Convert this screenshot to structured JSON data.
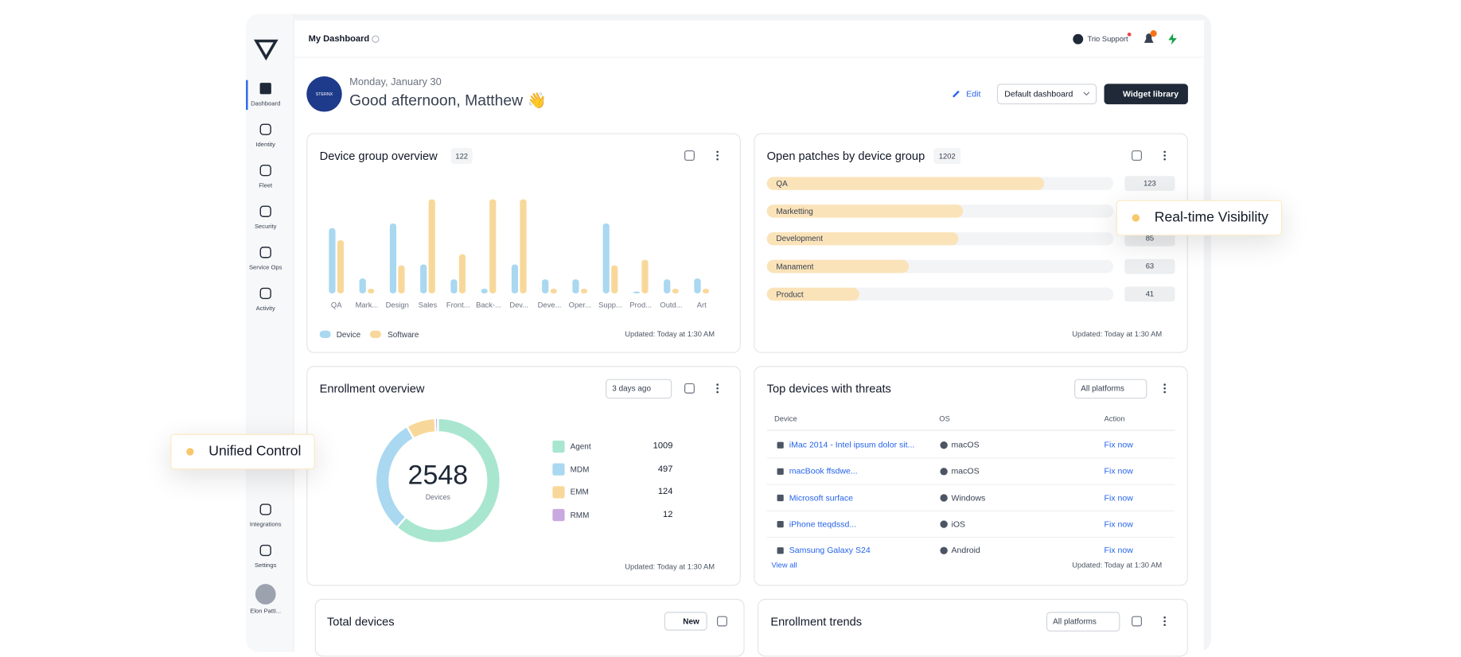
{
  "header": {
    "title": "My Dashboard",
    "support": "Trio Support"
  },
  "sidebar": {
    "items": [
      "Dashboard",
      "Identity",
      "Fleet",
      "Security",
      "Service Ops",
      "Activity",
      "Integrations",
      "Settings"
    ],
    "user": "Elon Patti..."
  },
  "greeting": {
    "logo": "STERNX",
    "date": "Monday, January 30",
    "message": "Good afternoon, Matthew 👋"
  },
  "toolbar": {
    "edit": "Edit",
    "dashboard": "Default dashboard",
    "widget_library": "Widget library"
  },
  "device_group_overview": {
    "title": "Device group overview",
    "count": 122,
    "updated": "Updated: Today at 1:30 AM",
    "chart_data": {
      "type": "bar",
      "categories": [
        "QA",
        "Mark...",
        "Design",
        "Sales",
        "Front...",
        "Back-...",
        "Dev...",
        "Deve...",
        "Oper...",
        "Supp...",
        "Prod...",
        "Outd...",
        "Art"
      ],
      "series": [
        {
          "name": "Device",
          "color": "#a9d8f0",
          "values": [
            70,
            16,
            75,
            31,
            15,
            5,
            31,
            15,
            15,
            75,
            2,
            15,
            16
          ]
        },
        {
          "name": "Software",
          "color": "#f8d89a",
          "values": [
            57,
            5,
            30,
            101,
            42,
            101,
            101,
            5,
            5,
            30,
            36,
            5,
            5
          ]
        }
      ]
    }
  },
  "open_patches": {
    "title": "Open patches by device group",
    "count": 1202,
    "updated": "Updated: Today at 1:30 AM",
    "chart_data": {
      "type": "hbar",
      "categories": [
        "QA",
        "Marketting",
        "Development",
        "Manament",
        "Product"
      ],
      "values": [
        123,
        87,
        85,
        63,
        41
      ],
      "color": "#fbe3b9"
    }
  },
  "enrollment_overview": {
    "title": "Enrollment overview",
    "range": "3 days ago",
    "updated": "Updated: Today at 1:30 AM",
    "total": 2548,
    "total_label": "Devices",
    "chart_data": {
      "type": "pie",
      "categories": [
        "Agent",
        "MDM",
        "EMM",
        "RMM"
      ],
      "values": [
        1009,
        497,
        124,
        12
      ],
      "colors": [
        "#a8e6cf",
        "#a9d8f0",
        "#f8d89a",
        "#c9a8e0"
      ]
    }
  },
  "top_devices": {
    "title": "Top devices with threats",
    "filter": "All platforms",
    "columns": [
      "Device",
      "OS",
      "Action"
    ],
    "rows": [
      [
        "iMac 2014 - Intel ipsum dolor sit...",
        "macOS",
        "Fix now"
      ],
      [
        "macBook ffsdwe...",
        "macOS",
        "Fix now"
      ],
      [
        "Microsoft surface",
        "Windows",
        "Fix now"
      ],
      [
        "iPhone tteqdssd...",
        "iOS",
        "Fix now"
      ],
      [
        "Samsung Galaxy S24",
        "Android",
        "Fix now"
      ]
    ],
    "view_all": "View all",
    "updated": "Updated: Today at 1:30 AM"
  },
  "total_devices": {
    "title": "Total devices",
    "new": "New"
  },
  "enrollment_trends": {
    "title": "Enrollment trends",
    "filter": "All platforms"
  },
  "callouts": [
    "Real-time Visibility",
    "Unified Control"
  ]
}
